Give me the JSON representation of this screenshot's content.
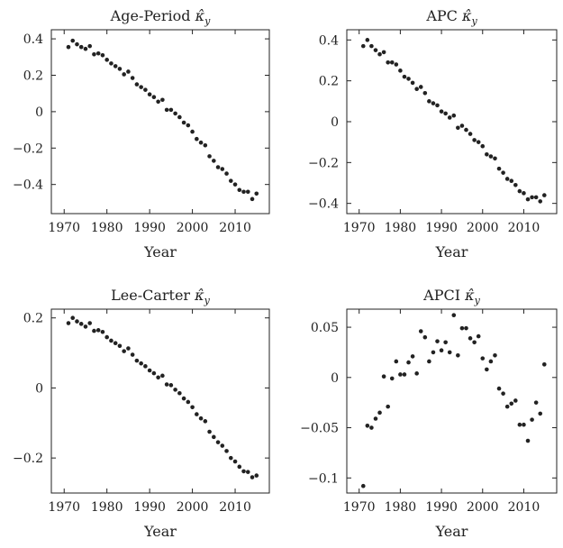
{
  "chart_data": [
    {
      "type": "scatter",
      "title": "Age-Period κ̂y",
      "title_main": "Age-Period ",
      "title_kappa": "κ̂",
      "title_sub": "y",
      "xlabel": "Year",
      "ylabel": "",
      "xlim": [
        1967,
        2018
      ],
      "ylim": [
        -0.56,
        0.45
      ],
      "xticks": [
        1970,
        1980,
        1990,
        2000,
        2010
      ],
      "yticks": [
        0.4,
        0.2,
        0,
        -0.2,
        -0.4
      ],
      "ytick_labels": [
        "0.4",
        "0.2",
        "0",
        "−0.2",
        "−0.4"
      ],
      "marker_color": "#222222",
      "x": [
        1971,
        1972,
        1973,
        1974,
        1975,
        1976,
        1977,
        1978,
        1979,
        1980,
        1981,
        1982,
        1983,
        1984,
        1985,
        1986,
        1987,
        1988,
        1989,
        1990,
        1991,
        1992,
        1993,
        1994,
        1995,
        1996,
        1997,
        1998,
        1999,
        2000,
        2001,
        2002,
        2003,
        2004,
        2005,
        2006,
        2007,
        2008,
        2009,
        2010,
        2011,
        2012,
        2013,
        2014,
        2015
      ],
      "y": [
        0.355,
        0.39,
        0.37,
        0.355,
        0.345,
        0.36,
        0.315,
        0.32,
        0.31,
        0.285,
        0.265,
        0.25,
        0.235,
        0.205,
        0.22,
        0.185,
        0.15,
        0.135,
        0.12,
        0.095,
        0.08,
        0.055,
        0.065,
        0.01,
        0.01,
        -0.01,
        -0.03,
        -0.06,
        -0.075,
        -0.11,
        -0.15,
        -0.17,
        -0.185,
        -0.245,
        -0.27,
        -0.305,
        -0.315,
        -0.34,
        -0.38,
        -0.4,
        -0.43,
        -0.44,
        -0.44,
        -0.48,
        -0.45
      ]
    },
    {
      "type": "scatter",
      "title": "APC κ̂y",
      "title_main": "APC ",
      "title_kappa": "κ̂",
      "title_sub": "y",
      "xlabel": "Year",
      "ylabel": "",
      "xlim": [
        1967,
        2018
      ],
      "ylim": [
        -0.45,
        0.45
      ],
      "xticks": [
        1970,
        1980,
        1990,
        2000,
        2010
      ],
      "yticks": [
        0.4,
        0.2,
        0,
        -0.2,
        -0.4
      ],
      "ytick_labels": [
        "0.4",
        "0.2",
        "0",
        "−0.2",
        "−0.4"
      ],
      "marker_color": "#222222",
      "x": [
        1971,
        1972,
        1973,
        1974,
        1975,
        1976,
        1977,
        1978,
        1979,
        1980,
        1981,
        1982,
        1983,
        1984,
        1985,
        1986,
        1987,
        1988,
        1989,
        1990,
        1991,
        1992,
        1993,
        1994,
        1995,
        1996,
        1997,
        1998,
        1999,
        2000,
        2001,
        2002,
        2003,
        2004,
        2005,
        2006,
        2007,
        2008,
        2009,
        2010,
        2011,
        2012,
        2013,
        2014,
        2015
      ],
      "y": [
        0.37,
        0.4,
        0.37,
        0.35,
        0.33,
        0.34,
        0.29,
        0.29,
        0.28,
        0.25,
        0.22,
        0.21,
        0.19,
        0.16,
        0.17,
        0.14,
        0.1,
        0.09,
        0.08,
        0.05,
        0.04,
        0.02,
        0.03,
        -0.03,
        -0.02,
        -0.04,
        -0.06,
        -0.09,
        -0.1,
        -0.12,
        -0.16,
        -0.17,
        -0.18,
        -0.23,
        -0.25,
        -0.28,
        -0.29,
        -0.31,
        -0.34,
        -0.35,
        -0.38,
        -0.37,
        -0.37,
        -0.39,
        -0.36
      ]
    },
    {
      "type": "scatter",
      "title": "Lee-Carter κ̂y",
      "title_main": "Lee-Carter ",
      "title_kappa": "κ̂",
      "title_sub": "y",
      "xlabel": "Year",
      "ylabel": "",
      "xlim": [
        1967,
        2018
      ],
      "ylim": [
        -0.3,
        0.225
      ],
      "xticks": [
        1970,
        1980,
        1990,
        2000,
        2010
      ],
      "yticks": [
        0.2,
        0,
        -0.2
      ],
      "ytick_labels": [
        "0.2",
        "0",
        "−0.2"
      ],
      "marker_color": "#222222",
      "x": [
        1971,
        1972,
        1973,
        1974,
        1975,
        1976,
        1977,
        1978,
        1979,
        1980,
        1981,
        1982,
        1983,
        1984,
        1985,
        1986,
        1987,
        1988,
        1989,
        1990,
        1991,
        1992,
        1993,
        1994,
        1995,
        1996,
        1997,
        1998,
        1999,
        2000,
        2001,
        2002,
        2003,
        2004,
        2005,
        2006,
        2007,
        2008,
        2009,
        2010,
        2011,
        2012,
        2013,
        2014,
        2015
      ],
      "y": [
        0.185,
        0.2,
        0.19,
        0.183,
        0.175,
        0.185,
        0.163,
        0.165,
        0.16,
        0.145,
        0.135,
        0.128,
        0.12,
        0.105,
        0.113,
        0.095,
        0.078,
        0.07,
        0.062,
        0.05,
        0.042,
        0.03,
        0.035,
        0.01,
        0.008,
        -0.005,
        -0.015,
        -0.03,
        -0.04,
        -0.055,
        -0.075,
        -0.087,
        -0.095,
        -0.125,
        -0.14,
        -0.155,
        -0.165,
        -0.18,
        -0.2,
        -0.21,
        -0.225,
        -0.238,
        -0.24,
        -0.255,
        -0.25
      ]
    },
    {
      "type": "scatter",
      "title": "APCI κ̂y",
      "title_main": "APCI ",
      "title_kappa": "κ̂",
      "title_sub": "y",
      "xlabel": "Year",
      "ylabel": "",
      "xlim": [
        1967,
        2018
      ],
      "ylim": [
        -0.115,
        0.068
      ],
      "xticks": [
        1970,
        1980,
        1990,
        2000,
        2010
      ],
      "yticks": [
        0.05,
        0,
        -0.05,
        -0.1
      ],
      "ytick_labels": [
        "0.05",
        "0",
        "−0.05",
        "−0.1"
      ],
      "marker_color": "#222222",
      "x": [
        1971,
        1972,
        1973,
        1974,
        1975,
        1976,
        1977,
        1978,
        1979,
        1980,
        1981,
        1982,
        1983,
        1984,
        1985,
        1986,
        1987,
        1988,
        1989,
        1990,
        1991,
        1992,
        1993,
        1994,
        1995,
        1996,
        1997,
        1998,
        1999,
        2000,
        2001,
        2002,
        2003,
        2004,
        2005,
        2006,
        2007,
        2008,
        2009,
        2010,
        2011,
        2012,
        2013,
        2014,
        2015
      ],
      "y": [
        -0.108,
        -0.048,
        -0.05,
        -0.041,
        -0.035,
        0.001,
        -0.029,
        -0.001,
        0.016,
        0.003,
        0.003,
        0.015,
        0.021,
        0.004,
        0.046,
        0.04,
        0.016,
        0.025,
        0.036,
        0.027,
        0.035,
        0.025,
        0.062,
        0.022,
        0.049,
        0.049,
        0.039,
        0.035,
        0.041,
        0.019,
        0.008,
        0.016,
        0.022,
        -0.011,
        -0.016,
        -0.029,
        -0.026,
        -0.023,
        -0.047,
        -0.047,
        -0.063,
        -0.042,
        -0.025,
        -0.036,
        0.013
      ]
    }
  ]
}
